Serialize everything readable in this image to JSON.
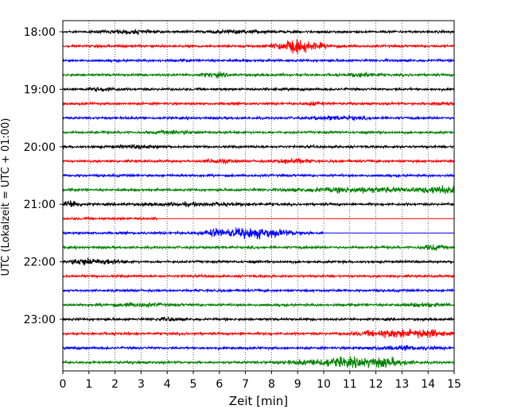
{
  "chart_data": {
    "type": "line",
    "title": "",
    "xlabel": "Zeit  [min]",
    "ylabel": "UTC (Lokalzeit = UTC + 01:00)",
    "xlim": [
      0,
      15
    ],
    "x_ticks": [
      "0",
      "1",
      "2",
      "3",
      "4",
      "5",
      "6",
      "7",
      "8",
      "9",
      "10",
      "11",
      "12",
      "13",
      "14",
      "15"
    ],
    "y_ticks": [
      {
        "label": "18:00",
        "row": 0
      },
      {
        "label": "19:00",
        "row": 4
      },
      {
        "label": "20:00",
        "row": 8
      },
      {
        "label": "21:00",
        "row": 12
      },
      {
        "label": "22:00",
        "row": 16
      },
      {
        "label": "23:00",
        "row": 20
      }
    ],
    "grid": "vertical-dotted",
    "row_colors": [
      "#000000",
      "#ff0000",
      "#0000ff",
      "#008000"
    ],
    "traces": [
      {
        "start": "18:00",
        "events": [
          {
            "t": 2.5,
            "w": 0.8,
            "a": 1.2
          },
          {
            "t": 6.5,
            "w": 1.0,
            "a": 1.0
          }
        ]
      },
      {
        "start": "18:15",
        "events": [
          {
            "t": 8.8,
            "w": 0.7,
            "a": 4.0
          },
          {
            "t": 9.5,
            "w": 0.8,
            "a": 2.0
          }
        ]
      },
      {
        "start": "18:30",
        "events": []
      },
      {
        "start": "18:45",
        "events": [
          {
            "t": 5.8,
            "w": 0.5,
            "a": 1.5
          },
          {
            "t": 11.5,
            "w": 0.5,
            "a": 1.5
          }
        ]
      },
      {
        "start": "19:00",
        "events": [
          {
            "t": 1.5,
            "w": 0.6,
            "a": 1.2
          }
        ]
      },
      {
        "start": "19:15",
        "events": [
          {
            "t": 9.6,
            "w": 0.3,
            "a": 1.6
          },
          {
            "t": 14.5,
            "w": 0.4,
            "a": 1.2
          }
        ]
      },
      {
        "start": "19:30",
        "events": [
          {
            "t": 10.5,
            "w": 1.0,
            "a": 1.3
          }
        ]
      },
      {
        "start": "19:45",
        "events": [
          {
            "t": 4.3,
            "w": 0.8,
            "a": 1.2
          }
        ]
      },
      {
        "start": "20:00",
        "events": [
          {
            "t": 3.0,
            "w": 1.0,
            "a": 1.0
          }
        ]
      },
      {
        "start": "20:15",
        "events": [
          {
            "t": 6.0,
            "w": 0.5,
            "a": 1.6
          },
          {
            "t": 8.8,
            "w": 0.6,
            "a": 1.8
          }
        ]
      },
      {
        "start": "20:30",
        "events": []
      },
      {
        "start": "20:45",
        "events": [
          {
            "t": 11.5,
            "w": 2.5,
            "a": 1.8
          },
          {
            "t": 14.5,
            "w": 0.8,
            "a": 2.5
          }
        ]
      },
      {
        "start": "21:00",
        "events": [
          {
            "t": 0.3,
            "w": 0.3,
            "a": 3.5
          },
          {
            "t": 5.0,
            "w": 2.0,
            "a": 1.0
          }
        ]
      },
      {
        "start": "21:15",
        "events": [
          {
            "t": 11.3,
            "w": 0.3,
            "a": 1.2
          }
        ]
      },
      {
        "start": "21:30",
        "events": [
          {
            "t": 7.3,
            "w": 1.4,
            "a": 4.0
          },
          {
            "t": 5.8,
            "w": 0.4,
            "a": 2.0
          }
        ]
      },
      {
        "start": "21:45",
        "events": [
          {
            "t": 14.2,
            "w": 0.4,
            "a": 2.0
          }
        ]
      },
      {
        "start": "22:00",
        "events": [
          {
            "t": 0.8,
            "w": 0.6,
            "a": 2.5
          },
          {
            "t": 1.8,
            "w": 0.5,
            "a": 1.5
          }
        ]
      },
      {
        "start": "22:15",
        "events": []
      },
      {
        "start": "22:30",
        "events": []
      },
      {
        "start": "22:45",
        "events": [
          {
            "t": 3.0,
            "w": 1.0,
            "a": 1.2
          },
          {
            "t": 13.8,
            "w": 0.8,
            "a": 1.2
          }
        ]
      },
      {
        "start": "23:00",
        "events": [
          {
            "t": 4.0,
            "w": 0.5,
            "a": 1.0
          }
        ]
      },
      {
        "start": "23:15",
        "events": [
          {
            "t": 12.8,
            "w": 1.4,
            "a": 3.0
          },
          {
            "t": 14.0,
            "w": 0.5,
            "a": 2.0
          }
        ]
      },
      {
        "start": "23:30",
        "events": [
          {
            "t": 13.0,
            "w": 1.5,
            "a": 1.2
          }
        ]
      },
      {
        "start": "23:45",
        "events": [
          {
            "t": 10.8,
            "w": 1.8,
            "a": 3.5
          },
          {
            "t": 12.3,
            "w": 0.8,
            "a": 2.0
          }
        ]
      }
    ],
    "flat_segments": [
      {
        "row": 13,
        "from": 3.6,
        "to": 15
      },
      {
        "row": 14,
        "from": 10.0,
        "to": 15
      }
    ]
  }
}
